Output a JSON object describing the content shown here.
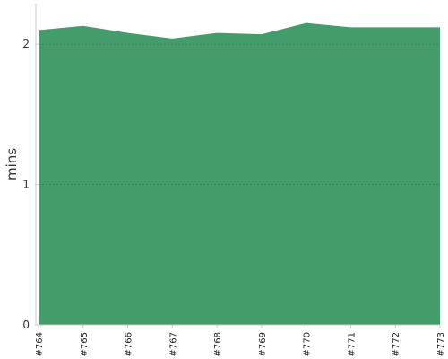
{
  "chart_data": {
    "type": "area",
    "title": "",
    "xlabel": "",
    "ylabel": "mins",
    "categories": [
      "#764",
      "#765",
      "#766",
      "#767",
      "#768",
      "#769",
      "#770",
      "#771",
      "#772",
      "#773"
    ],
    "values": [
      2.1,
      2.13,
      2.08,
      2.04,
      2.08,
      2.07,
      2.15,
      2.12,
      2.12,
      2.12
    ],
    "ylim": [
      0,
      2.25
    ],
    "yticks": [
      "0",
      "1",
      "2"
    ],
    "grid": true,
    "colors": {
      "area": "#449c6c",
      "grid": "#2f7d52",
      "axis": "#cccccc"
    }
  }
}
